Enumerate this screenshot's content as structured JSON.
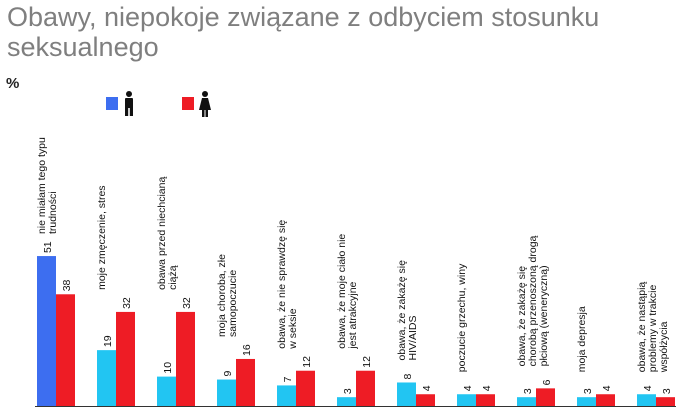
{
  "title": "Obawy, niepokoje związane z odbyciem stosunku seksualnego",
  "unit": "%",
  "legend": [
    {
      "icon": "male-icon",
      "color": "#3d6ef0"
    },
    {
      "icon": "female-icon",
      "color": "#ee1c25"
    }
  ],
  "chart_data": {
    "type": "bar",
    "title": "Obawy, niepokoje związane z odbyciem stosunku seksualnego",
    "ylabel": "%",
    "ylim": [
      0,
      60
    ],
    "grid": false,
    "categories": [
      [
        "nie miałam tego typu",
        "trudności"
      ],
      [
        "moje zmęczenie, stres"
      ],
      [
        "obawa przed niechcianą",
        "ciążą"
      ],
      [
        "moja choroba, złe",
        "samopoczucie"
      ],
      [
        "obawa, że nie sprawdzę się",
        "w seksie"
      ],
      [
        "obawa, że moje ciało nie",
        "jest atrakcyjne"
      ],
      [
        "obawa, że zakażę się",
        "HIV/AIDS"
      ],
      [
        "poczucie grzechu, winy"
      ],
      [
        "obawa, że zakażę się",
        "chorobą przenoszoną drogą",
        "płciową (weneryczną)"
      ],
      [
        "moja depresja"
      ],
      [
        "obawa, że nastąpią",
        "problemy w trakcie",
        "współżycia"
      ]
    ],
    "series": [
      {
        "values": [
          51,
          19,
          10,
          9,
          7,
          3,
          8,
          4,
          3,
          3,
          4
        ],
        "color": "#22c5f2",
        "highlight": {
          "index": 0,
          "color": "#3d6ef0"
        }
      },
      {
        "values": [
          38,
          32,
          32,
          16,
          12,
          12,
          4,
          4,
          6,
          4,
          3
        ],
        "color": "#ee1c25"
      }
    ]
  }
}
